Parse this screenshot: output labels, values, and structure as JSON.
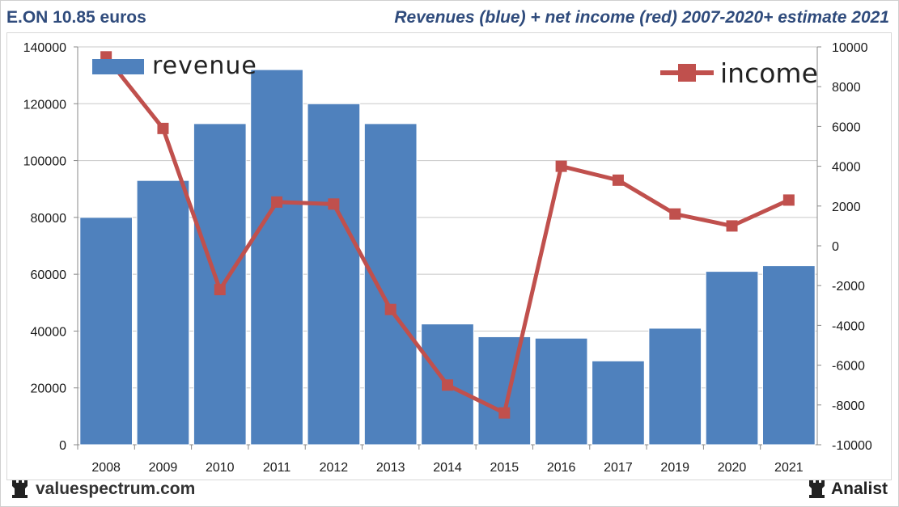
{
  "header": {
    "left_title": "E.ON 10.85 euros",
    "right_title": "Revenues (blue) + net income (red) 2007-2020+ estimate 2021"
  },
  "footer": {
    "left_logo_icon": "rook-icon",
    "left_text": "valuespectrum.com",
    "right_logo_icon": "rook-icon",
    "right_text": "Analist"
  },
  "colors": {
    "revenue": "#4f81bd",
    "income": "#c0504d",
    "grid": "#c8c8c8",
    "axis_text": "#1a1a1a"
  },
  "chart_data": {
    "type": "bar",
    "categories": [
      "2008",
      "2009",
      "2010",
      "2011",
      "2012",
      "2013",
      "2014",
      "2015",
      "2016",
      "2017",
      "2019",
      "2020",
      "2021"
    ],
    "series": [
      {
        "name": "revenue",
        "type": "bar",
        "axis": "left",
        "values": [
          80000,
          93000,
          113000,
          132000,
          120000,
          113000,
          42500,
          38000,
          37500,
          29500,
          41000,
          61000,
          63000
        ]
      },
      {
        "name": "income",
        "type": "line",
        "axis": "right",
        "values": [
          9500,
          5900,
          -2200,
          2200,
          2100,
          -3200,
          -7000,
          -8400,
          4000,
          3300,
          1600,
          1000,
          2300
        ]
      }
    ],
    "y_left": {
      "min": 0,
      "max": 140000,
      "ticks": [
        0,
        20000,
        40000,
        60000,
        80000,
        100000,
        120000,
        140000
      ]
    },
    "y_right": {
      "min": -10000,
      "max": 10000,
      "ticks": [
        -10000,
        -8000,
        -6000,
        -4000,
        -2000,
        0,
        2000,
        4000,
        6000,
        8000,
        10000
      ]
    },
    "legend": [
      {
        "label": "revenue",
        "position": "top-left"
      },
      {
        "label": "income",
        "position": "top-right"
      }
    ],
    "grid": true
  }
}
